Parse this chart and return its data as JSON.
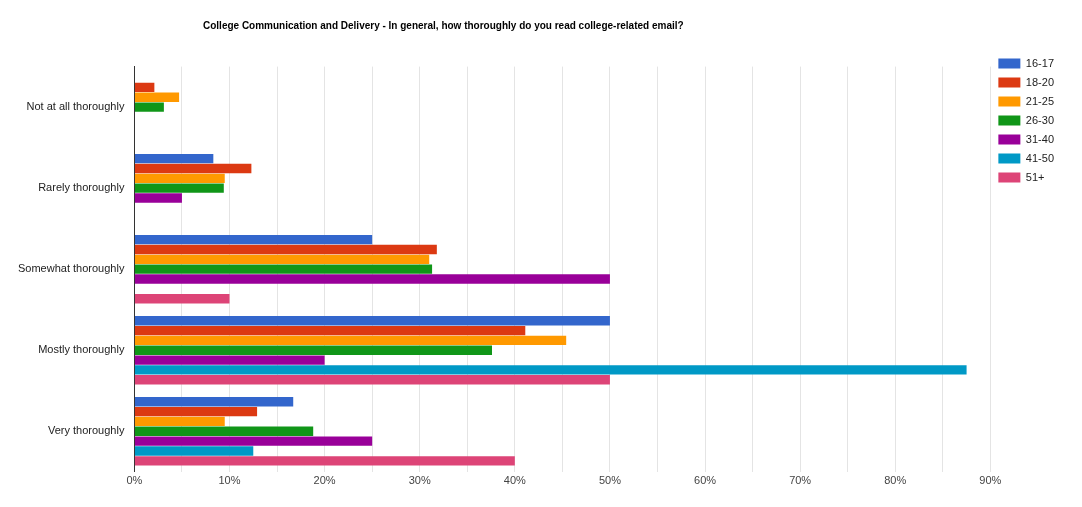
{
  "chart_data": {
    "type": "bar",
    "orientation": "horizontal",
    "title": "College Communication and Delivery - In general, how thoroughly do you read college-related email?",
    "categories": [
      "Not at all thoroughly",
      "Rarely thoroughly",
      "Somewhat thoroughly",
      "Mostly thoroughly",
      "Very thoroughly"
    ],
    "series": [
      {
        "name": "16-17",
        "color": "#3366cc",
        "values": [
          0,
          8.3,
          25,
          50,
          16.7
        ]
      },
      {
        "name": "18-20",
        "color": "#dc3912",
        "values": [
          2.1,
          12.3,
          31.8,
          41.1,
          12.9
        ]
      },
      {
        "name": "21-25",
        "color": "#ff9900",
        "values": [
          4.7,
          9.5,
          31,
          45.4,
          9.5
        ]
      },
      {
        "name": "26-30",
        "color": "#109618",
        "values": [
          3.1,
          9.4,
          31.3,
          37.6,
          18.8
        ]
      },
      {
        "name": "31-40",
        "color": "#990099",
        "values": [
          0,
          5,
          50,
          20,
          25
        ]
      },
      {
        "name": "41-50",
        "color": "#0099c6",
        "values": [
          0,
          0,
          0,
          87.5,
          12.5
        ]
      },
      {
        "name": "51+",
        "color": "#dd4477",
        "values": [
          0,
          0,
          10,
          50,
          40
        ]
      }
    ],
    "xlim": [
      0,
      90
    ],
    "xticks": [
      {
        "value": 0,
        "label": "0%"
      },
      {
        "value": 5,
        "label": null
      },
      {
        "value": 10,
        "label": "10%"
      },
      {
        "value": 15,
        "label": null
      },
      {
        "value": 20,
        "label": "20%"
      },
      {
        "value": 25,
        "label": null
      },
      {
        "value": 30,
        "label": "30%"
      },
      {
        "value": 35,
        "label": null
      },
      {
        "value": 40,
        "label": "40%"
      },
      {
        "value": 45,
        "label": null
      },
      {
        "value": 50,
        "label": "50%"
      },
      {
        "value": 55,
        "label": null
      },
      {
        "value": 60,
        "label": "60%"
      },
      {
        "value": 65,
        "label": null
      },
      {
        "value": 70,
        "label": "70%"
      },
      {
        "value": 75,
        "label": null
      },
      {
        "value": 80,
        "label": "80%"
      },
      {
        "value": 85,
        "label": null
      },
      {
        "value": 90,
        "label": "90%"
      }
    ],
    "grid": "x",
    "legend": "right"
  }
}
